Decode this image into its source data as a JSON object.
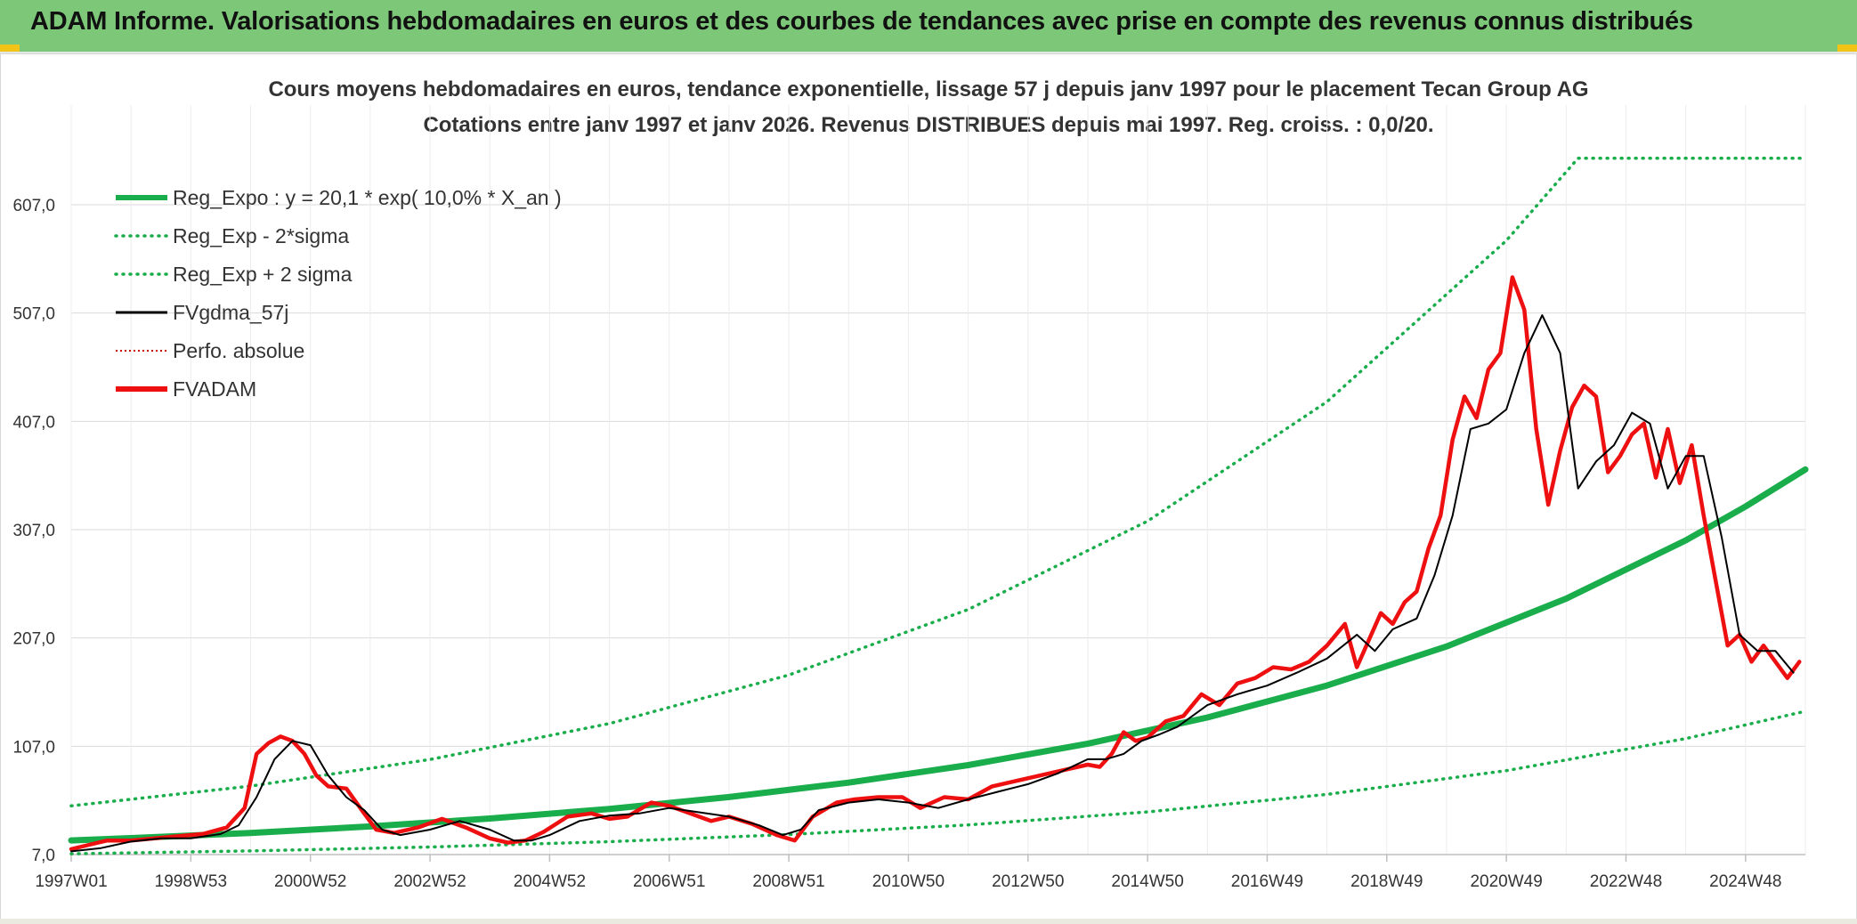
{
  "banner": {
    "title": "ADAM Informe. Valorisations hebdomadaires en euros et des courbes de tendances avec prise en compte des revenus connus distribués"
  },
  "colors": {
    "banner_bg": "#7dc878",
    "trend_green": "#1aad4b",
    "price_red": "#ee1010",
    "smooth_black": "#000000",
    "perf_red": "#cc0000"
  },
  "chart_data": {
    "type": "line",
    "title": "Cours moyens hebdomadaires en euros, tendance exponentielle, lissage 57 j depuis janv 1997 pour le placement Tecan Group AG",
    "subtitle": "Cotations entre janv 1997 et janv 2026. Revenus DISTRIBUES depuis mai 1997. Reg. croiss. : 0,0/20.",
    "xlabel": "",
    "ylabel": "",
    "xlim": [
      1997.0,
      2026.0
    ],
    "ylim": [
      7.0,
      650.0
    ],
    "y_ticks": [
      7.0,
      107.0,
      207.0,
      307.0,
      407.0,
      507.0,
      607.0
    ],
    "y_tick_labels": [
      "7,0",
      "107,0",
      "207,0",
      "307,0",
      "407,0",
      "507,0",
      "607,0"
    ],
    "x_ticks": [
      1997.0,
      1999.0,
      2001.0,
      2003.0,
      2005.0,
      2007.0,
      2009.0,
      2011.0,
      2013.0,
      2015.0,
      2017.0,
      2019.0,
      2021.0,
      2023.0,
      2025.0
    ],
    "x_tick_labels": [
      "1997W01",
      "1998W53",
      "2000W52",
      "2002W52",
      "2004W52",
      "2006W51",
      "2008W51",
      "2010W50",
      "2012W50",
      "2014W50",
      "2016W49",
      "2018W49",
      "2020W49",
      "2022W48",
      "2024W48"
    ],
    "grid": true,
    "legend_position": "top-left",
    "legend": [
      {
        "key": "reg_expo",
        "label": "Reg_Expo : y = 20,1 * exp( 10,0% *  X_an )",
        "style": "solid-thick",
        "color": "#1aad4b"
      },
      {
        "key": "reg_minus",
        "label": "Reg_Exp - 2*sigma",
        "style": "dotted",
        "color": "#1aad4b"
      },
      {
        "key": "reg_plus",
        "label": "Reg_Exp + 2 sigma",
        "style": "dotted",
        "color": "#1aad4b"
      },
      {
        "key": "fvgdma",
        "label": "FVgdma_57j",
        "style": "solid",
        "color": "#000000"
      },
      {
        "key": "perfo",
        "label": "Perfo. absolue",
        "style": "dotted-thin",
        "color": "#cc0000"
      },
      {
        "key": "fvadam",
        "label": "FVADAM",
        "style": "solid-thick",
        "color": "#ee1010"
      }
    ],
    "series": [
      {
        "name": "Reg_Expo",
        "x": [
          1997.0,
          1998.0,
          2000.0,
          2002.0,
          2004.0,
          2006.0,
          2008.0,
          2010.0,
          2012.0,
          2014.0,
          2016.0,
          2018.0,
          2020.0,
          2022.0,
          2024.0,
          2025.0,
          2026.0
        ],
        "values": [
          20.1,
          22.2,
          27.0,
          33.0,
          40.3,
          49.2,
          60.1,
          73.4,
          89.6,
          109.4,
          133.6,
          163.1,
          199.2,
          243.3,
          297.1,
          328.4,
          362.6
        ]
      },
      {
        "name": "Reg_Exp - 2*sigma",
        "x": [
          1997.0,
          2000.0,
          2003.0,
          2006.0,
          2009.0,
          2012.0,
          2015.0,
          2018.0,
          2021.0,
          2024.0,
          2026.0
        ],
        "values": [
          7.7,
          10.4,
          14.0,
          18.9,
          25.5,
          34.4,
          46.4,
          62.6,
          84.5,
          114.1,
          139.3
        ]
      },
      {
        "name": "Reg_Exp + 2 sigma",
        "x": [
          1997.0,
          2000.0,
          2003.0,
          2006.0,
          2009.0,
          2012.0,
          2015.0,
          2018.0,
          2021.0,
          2022.2,
          2026.0
        ],
        "values": [
          52.0,
          70.2,
          94.8,
          128.0,
          172.8,
          233.3,
          314.9,
          425.1,
          573.9,
          650.0,
          650.0
        ]
      },
      {
        "name": "FVgdma_57j",
        "x": [
          1997.0,
          1997.5,
          1998.0,
          1998.5,
          1999.0,
          1999.5,
          1999.8,
          2000.1,
          2000.4,
          2000.7,
          2001.0,
          2001.3,
          2001.6,
          2001.9,
          2002.2,
          2002.5,
          2003.0,
          2003.5,
          2004.0,
          2004.4,
          2004.7,
          2005.0,
          2005.5,
          2006.0,
          2006.5,
          2007.0,
          2007.5,
          2008.0,
          2008.5,
          2008.9,
          2009.2,
          2009.5,
          2010.0,
          2010.5,
          2011.0,
          2011.5,
          2012.0,
          2012.5,
          2013.0,
          2013.5,
          2014.0,
          2014.3,
          2014.6,
          2014.9,
          2015.2,
          2015.5,
          2016.0,
          2016.5,
          2017.0,
          2017.5,
          2018.0,
          2018.5,
          2018.8,
          2019.1,
          2019.5,
          2019.8,
          2020.1,
          2020.4,
          2020.7,
          2021.0,
          2021.3,
          2021.6,
          2021.9,
          2022.2,
          2022.5,
          2022.8,
          2023.1,
          2023.4,
          2023.7,
          2024.0,
          2024.3,
          2024.6,
          2024.9,
          2025.2,
          2025.5,
          2025.8
        ],
        "values": [
          10.0,
          13.0,
          19.0,
          22.0,
          22.0,
          26.0,
          34.0,
          60.0,
          95.0,
          112.0,
          108.0,
          80.0,
          60.0,
          48.0,
          30.0,
          25.0,
          30.0,
          38.0,
          30.0,
          20.0,
          20.0,
          25.0,
          38.0,
          43.0,
          45.0,
          50.0,
          46.0,
          42.0,
          34.0,
          25.0,
          30.0,
          48.0,
          55.0,
          58.0,
          55.0,
          50.0,
          58.0,
          65.0,
          72.0,
          82.0,
          95.0,
          95.0,
          100.0,
          112.0,
          118.0,
          125.0,
          145.0,
          155.0,
          163.0,
          175.0,
          188.0,
          210.0,
          195.0,
          215.0,
          225.0,
          265.0,
          320.0,
          400.0,
          405.0,
          418.0,
          470.0,
          505.0,
          470.0,
          345.0,
          370.0,
          385.0,
          415.0,
          405.0,
          345.0,
          375.0,
          375.0,
          300.0,
          210.0,
          195.0,
          195.0,
          175.0
        ]
      },
      {
        "name": "FVADAM",
        "x": [
          1997.0,
          1997.3,
          1997.6,
          1998.0,
          1998.4,
          1998.8,
          1999.2,
          1999.6,
          1999.9,
          2000.1,
          2000.3,
          2000.5,
          2000.7,
          2000.9,
          2001.1,
          2001.3,
          2001.6,
          2001.9,
          2002.1,
          2002.4,
          2002.8,
          2003.2,
          2003.6,
          2004.0,
          2004.3,
          2004.6,
          2004.9,
          2005.3,
          2005.7,
          2006.0,
          2006.3,
          2006.7,
          2007.0,
          2007.3,
          2007.7,
          2008.0,
          2008.4,
          2008.8,
          2009.1,
          2009.4,
          2009.8,
          2010.1,
          2010.5,
          2010.9,
          2011.2,
          2011.6,
          2012.0,
          2012.4,
          2012.8,
          2013.2,
          2013.6,
          2014.0,
          2014.2,
          2014.4,
          2014.6,
          2014.8,
          2015.0,
          2015.3,
          2015.6,
          2015.9,
          2016.2,
          2016.5,
          2016.8,
          2017.1,
          2017.4,
          2017.7,
          2018.0,
          2018.3,
          2018.5,
          2018.7,
          2018.9,
          2019.1,
          2019.3,
          2019.5,
          2019.7,
          2019.9,
          2020.1,
          2020.3,
          2020.5,
          2020.7,
          2020.9,
          2021.1,
          2021.3,
          2021.5,
          2021.7,
          2021.9,
          2022.1,
          2022.3,
          2022.5,
          2022.7,
          2022.9,
          2023.1,
          2023.3,
          2023.5,
          2023.7,
          2023.9,
          2024.1,
          2024.3,
          2024.5,
          2024.7,
          2024.9,
          2025.1,
          2025.3,
          2025.5,
          2025.7,
          2025.9
        ],
        "values": [
          12.0,
          16.0,
          20.0,
          20.0,
          22.0,
          24.0,
          26.0,
          32.0,
          50.0,
          100.0,
          110.0,
          116.0,
          112.0,
          100.0,
          80.0,
          70.0,
          68.0,
          45.0,
          30.0,
          27.0,
          32.0,
          40.0,
          32.0,
          22.0,
          18.0,
          20.0,
          28.0,
          42.0,
          45.0,
          40.0,
          42.0,
          55.0,
          52.0,
          46.0,
          38.0,
          42.0,
          35.0,
          25.0,
          20.0,
          42.0,
          55.0,
          58.0,
          60.0,
          60.0,
          50.0,
          60.0,
          58.0,
          70.0,
          75.0,
          80.0,
          85.0,
          90.0,
          88.0,
          100.0,
          120.0,
          112.0,
          115.0,
          130.0,
          135.0,
          155.0,
          145.0,
          165.0,
          170.0,
          180.0,
          178.0,
          185.0,
          200.0,
          220.0,
          180.0,
          205.0,
          230.0,
          220.0,
          240.0,
          250.0,
          290.0,
          320.0,
          390.0,
          430.0,
          410.0,
          455.0,
          470.0,
          540.0,
          510.0,
          400.0,
          330.0,
          380.0,
          420.0,
          440.0,
          430.0,
          360.0,
          375.0,
          395.0,
          405.0,
          355.0,
          400.0,
          350.0,
          385.0,
          320.0,
          260.0,
          200.0,
          210.0,
          185.0,
          200.0,
          185.0,
          170.0,
          185.0
        ]
      }
    ]
  }
}
